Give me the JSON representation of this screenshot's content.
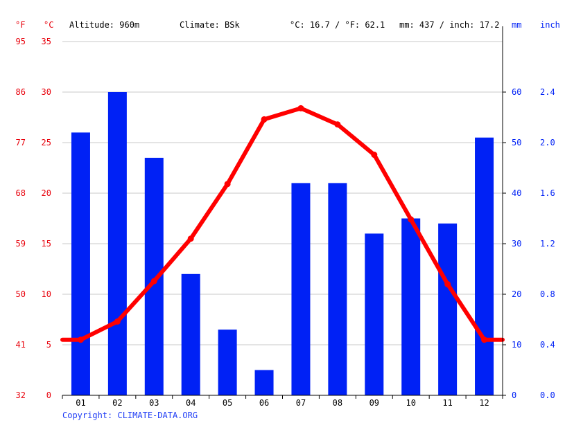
{
  "header": {
    "altitude": "Altitude: 960m",
    "climate": "Climate: BSk",
    "temp_avg": "°C: 16.7 / °F: 62.1",
    "precip_total": "mm: 437 / inch: 17.2"
  },
  "units": {
    "fahrenheit": "°F",
    "celsius": "°C",
    "mm": "mm",
    "inch": "inch"
  },
  "copyright": "Copyright: CLIMATE-DATA.ORG",
  "colors": {
    "temperature": "#ff0000",
    "precipitation": "#0021f5",
    "temp_axis": "#e8000b",
    "grid": "#c8c8c8"
  },
  "chart_data": {
    "type": "bar",
    "categories": [
      "01",
      "02",
      "03",
      "04",
      "05",
      "06",
      "07",
      "08",
      "09",
      "10",
      "11",
      "12"
    ],
    "series": [
      {
        "values": [
          52,
          60,
          47,
          24,
          13,
          5,
          42,
          42,
          32,
          35,
          34,
          51
        ],
        "type": "bar",
        "axis": "mm"
      },
      {
        "values": [
          5.5,
          7.3,
          11.3,
          15.5,
          20.9,
          27.3,
          28.4,
          26.8,
          23.8,
          17.4,
          11.0,
          5.5
        ],
        "type": "line",
        "axis": "°C"
      }
    ],
    "axes": {
      "celsius": {
        "ticks": [
          "0",
          "5",
          "10",
          "15",
          "20",
          "25",
          "30",
          "35"
        ],
        "range": [
          0,
          35
        ]
      },
      "fahrenheit": {
        "ticks": [
          "32",
          "41",
          "50",
          "59",
          "68",
          "77",
          "86",
          "95"
        ]
      },
      "mm": {
        "ticks": [
          "0",
          "10",
          "20",
          "30",
          "40",
          "50",
          "60"
        ],
        "range": [
          0,
          70
        ]
      },
      "inch": {
        "ticks": [
          "0.0",
          "0.4",
          "0.8",
          "1.2",
          "1.6",
          "2.0",
          "2.4"
        ]
      }
    },
    "grid": true
  }
}
